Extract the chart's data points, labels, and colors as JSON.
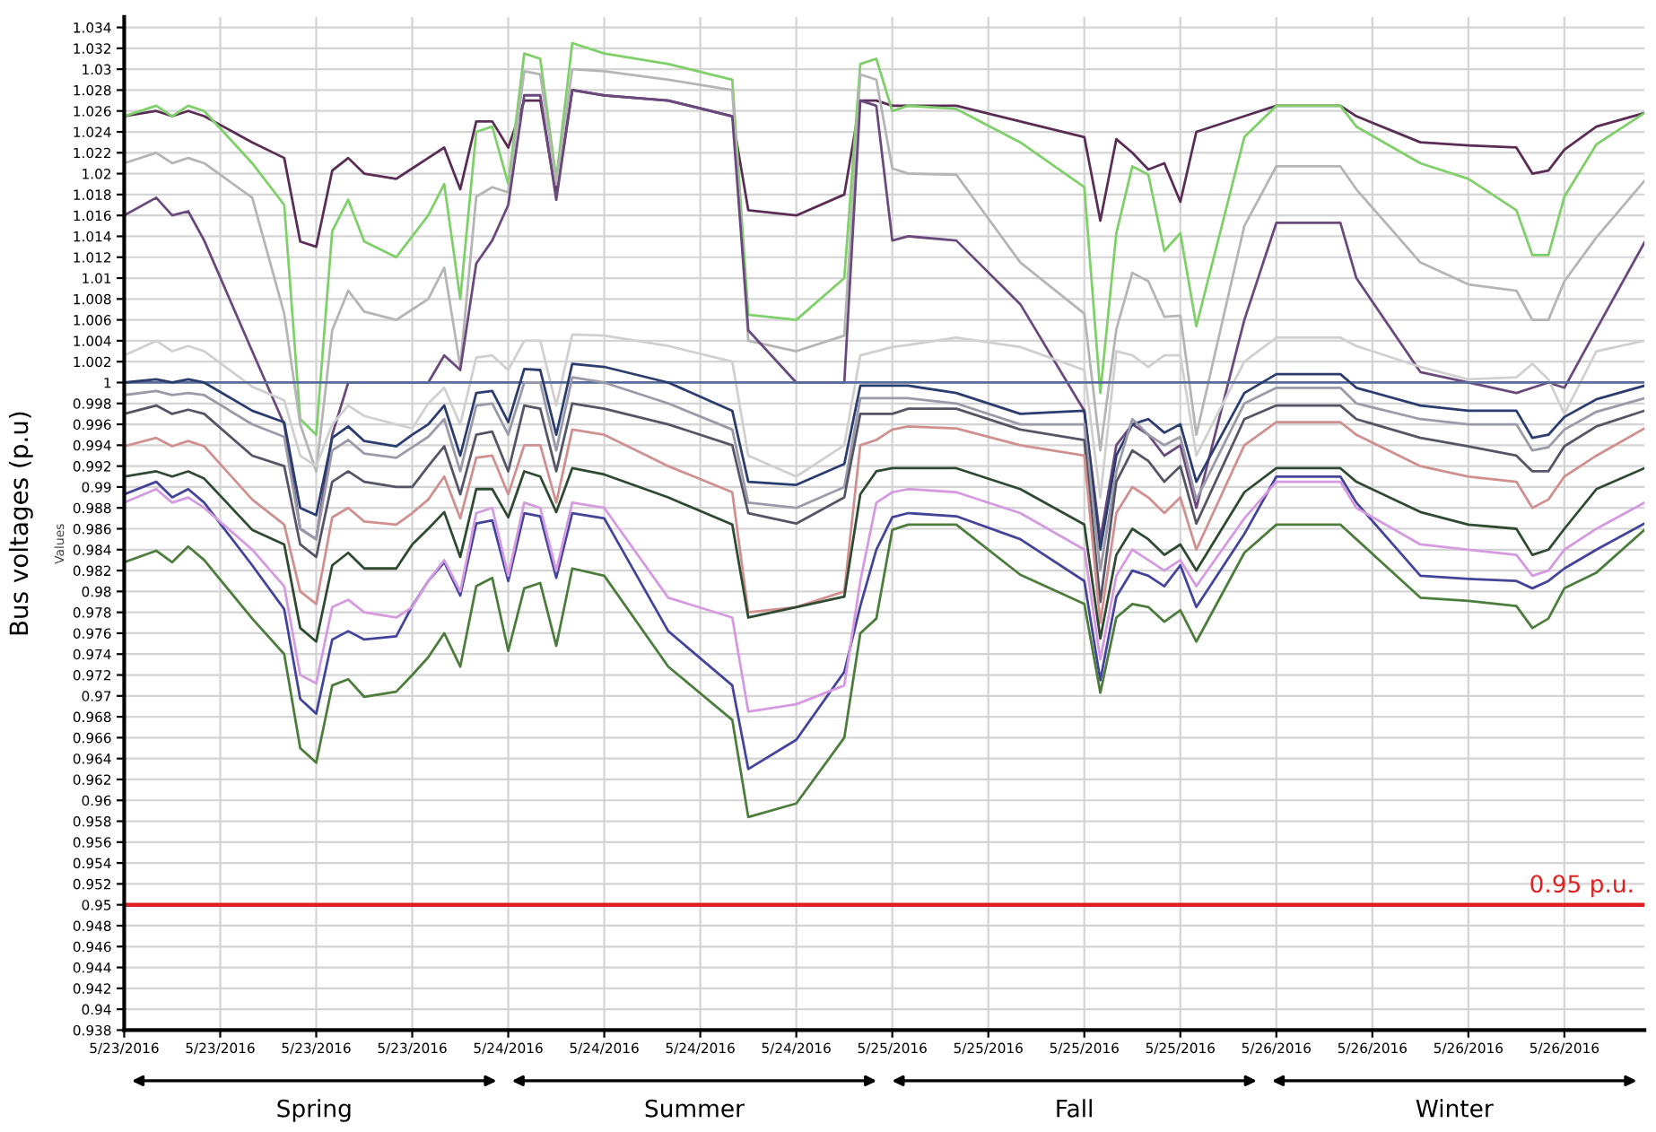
{
  "chart_data": {
    "type": "line",
    "ylabel": "Bus voltages (p.u)",
    "annotations": [
      "Values",
      "Spring",
      "Summer",
      "Fall",
      "Winter"
    ],
    "x": [
      "2016-05-23T00:00",
      "2016-05-23T02:00",
      "2016-05-23T03:00",
      "2016-05-23T04:00",
      "2016-05-23T05:00",
      "2016-05-23T08:00",
      "2016-05-23T10:00",
      "2016-05-23T11:00",
      "2016-05-23T12:00",
      "2016-05-23T13:00",
      "2016-05-23T14:00",
      "2016-05-23T15:00",
      "2016-05-23T17:00",
      "2016-05-23T18:00",
      "2016-05-23T19:00",
      "2016-05-23T20:00",
      "2016-05-23T21:00",
      "2016-05-23T22:00",
      "2016-05-23T23:00",
      "2016-05-24T00:00",
      "2016-05-24T01:00",
      "2016-05-24T02:00",
      "2016-05-24T03:00",
      "2016-05-24T04:00",
      "2016-05-24T06:00",
      "2016-05-24T10:00",
      "2016-05-24T14:00",
      "2016-05-24T15:00",
      "2016-05-24T18:00",
      "2016-05-24T21:00",
      "2016-05-24T22:00",
      "2016-05-24T23:00",
      "2016-05-25T00:00",
      "2016-05-25T01:00",
      "2016-05-25T04:00",
      "2016-05-25T08:00",
      "2016-05-25T12:00",
      "2016-05-25T13:00",
      "2016-05-25T14:00",
      "2016-05-25T15:00",
      "2016-05-25T16:00",
      "2016-05-25T17:00",
      "2016-05-25T18:00",
      "2016-05-25T19:00",
      "2016-05-25T22:00",
      "2016-05-26T00:00",
      "2016-05-26T04:00",
      "2016-05-26T05:00",
      "2016-05-26T09:00",
      "2016-05-26T12:00",
      "2016-05-26T15:00",
      "2016-05-26T16:00",
      "2016-05-26T17:00",
      "2016-05-26T18:00",
      "2016-05-26T20:00",
      "2016-05-26T23:00"
    ],
    "series": [
      {
        "color": "#5a2d55",
        "values": [
          1.0255,
          1.026,
          1.0255,
          1.026,
          1.0255,
          1.023,
          1.0215,
          1.0135,
          1.013,
          1.0203,
          1.0215,
          1.02,
          1.0195,
          1.0205,
          1.0215,
          1.0225,
          1.0185,
          1.025,
          1.025,
          1.0225,
          1.027,
          1.027,
          1.018,
          1.028,
          1.0275,
          1.027,
          1.0255,
          1.0165,
          1.016,
          1.018,
          1.027,
          1.027,
          1.0265,
          1.0265,
          1.0265,
          1.025,
          1.0235,
          1.0155,
          1.0233,
          1.022,
          1.0204,
          1.021,
          1.0173,
          1.024,
          1.0255,
          1.0265,
          1.0265,
          1.0255,
          1.023,
          1.0227,
          1.0225,
          1.02,
          1.0203,
          1.0223,
          1.0245,
          1.0258
        ]
      },
      {
        "color": "#7fd06a",
        "values": [
          1.0255,
          1.0265,
          1.0255,
          1.0265,
          1.026,
          1.021,
          1.017,
          0.9965,
          0.995,
          1.0145,
          1.0175,
          1.0135,
          1.012,
          1.014,
          1.016,
          1.019,
          1.008,
          1.024,
          1.0245,
          1.019,
          1.0315,
          1.031,
          1.0195,
          1.0325,
          1.0315,
          1.0305,
          1.029,
          1.0065,
          1.006,
          1.01,
          1.0305,
          1.031,
          1.026,
          1.0265,
          1.0262,
          1.023,
          1.0187,
          0.999,
          1.0143,
          1.0207,
          1.0199,
          1.0126,
          1.0143,
          1.0054,
          1.0235,
          1.0265,
          1.0265,
          1.0245,
          1.021,
          1.0195,
          1.0165,
          1.0122,
          1.0122,
          1.0178,
          1.0228,
          1.0258
        ]
      },
      {
        "color": "#b5b5b5",
        "values": [
          1.021,
          1.022,
          1.021,
          1.0215,
          1.021,
          1.0177,
          1.0066,
          0.996,
          0.9915,
          1.005,
          1.0088,
          1.0068,
          1.006,
          1.007,
          1.008,
          1.011,
          1.0015,
          1.0178,
          1.0187,
          1.0182,
          1.0298,
          1.0295,
          1.019,
          1.03,
          1.0298,
          1.029,
          1.028,
          1.004,
          1.003,
          1.0045,
          1.0295,
          1.029,
          1.0205,
          1.02,
          1.0199,
          1.0115,
          1.0066,
          0.9935,
          1.0051,
          1.0105,
          1.0097,
          1.0063,
          1.0064,
          0.995,
          1.015,
          1.0207,
          1.0207,
          1.0185,
          1.0115,
          1.0094,
          1.0088,
          1.006,
          1.006,
          1.0097,
          1.0139,
          1.0193
        ]
      },
      {
        "color": "#6a4a7d",
        "values": [
          1.016,
          1.0177,
          1.016,
          1.0164,
          1.0136,
          1.003,
          0.996,
          0.986,
          0.985,
          0.995,
          1.0,
          1.0,
          1.0,
          1.0,
          1.0,
          1.0026,
          1.0012,
          1.0114,
          1.0136,
          1.017,
          1.0275,
          1.0275,
          1.0175,
          1.028,
          1.0275,
          1.027,
          1.0255,
          1.005,
          1.0,
          1.0,
          1.027,
          1.0265,
          1.0136,
          1.014,
          1.0136,
          1.0075,
          0.9973,
          0.985,
          0.994,
          0.996,
          0.995,
          0.993,
          0.994,
          0.988,
          1.006,
          1.0153,
          1.0153,
          1.01,
          1.001,
          1.0,
          0.999,
          0.9995,
          1.0,
          0.9995,
          1.0051,
          1.0134
        ]
      },
      {
        "color": "#d0d0d0",
        "values": [
          1.0026,
          1.004,
          1.003,
          1.0035,
          1.003,
          0.9996,
          0.9983,
          0.993,
          0.992,
          0.996,
          0.9978,
          0.9968,
          0.996,
          0.9956,
          0.998,
          0.9995,
          0.996,
          1.0024,
          1.0026,
          1.0012,
          1.004,
          1.004,
          0.9978,
          1.0046,
          1.0045,
          1.0035,
          1.002,
          0.993,
          0.991,
          0.994,
          1.0026,
          1.003,
          1.0034,
          1.0036,
          1.0043,
          1.0034,
          1.0012,
          0.989,
          1.003,
          1.0026,
          1.0015,
          1.0026,
          1.0026,
          0.993,
          1.002,
          1.0043,
          1.0043,
          1.0035,
          1.0015,
          1.0003,
          1.0005,
          1.0018,
          1.0003,
          0.997,
          1.003,
          1.004
        ]
      },
      {
        "color": "#5a6a9a",
        "x": [
          "2016-05-23T00:00",
          "2016-05-26T23:00"
        ],
        "values": [
          1,
          1
        ]
      },
      {
        "color": "#2a3d6e",
        "values": [
          1.0,
          1.0003,
          1.0,
          1.0003,
          1.0,
          0.9973,
          0.9962,
          0.988,
          0.9873,
          0.9947,
          0.9958,
          0.9944,
          0.9939,
          0.995,
          0.996,
          0.9978,
          0.993,
          0.999,
          0.9992,
          0.9962,
          1.0013,
          1.0012,
          0.995,
          1.0018,
          1.0015,
          1.0,
          0.9973,
          0.9905,
          0.9902,
          0.9922,
          0.9997,
          0.9997,
          0.9997,
          0.9997,
          0.999,
          0.997,
          0.9973,
          0.984,
          0.993,
          0.996,
          0.9965,
          0.9952,
          0.996,
          0.9905,
          0.999,
          1.0008,
          1.0008,
          0.9995,
          0.9978,
          0.9973,
          0.9973,
          0.9947,
          0.995,
          0.9967,
          0.9984,
          0.9997
        ]
      },
      {
        "color": "#9a9aa8",
        "values": [
          0.9988,
          0.9992,
          0.9988,
          0.999,
          0.9988,
          0.996,
          0.9948,
          0.986,
          0.985,
          0.9935,
          0.9945,
          0.9932,
          0.9928,
          0.9938,
          0.9948,
          0.9965,
          0.9915,
          0.9978,
          0.998,
          0.995,
          1.0,
          1.0,
          0.9935,
          1.0005,
          1.0,
          0.998,
          0.9955,
          0.9885,
          0.988,
          0.99,
          0.9985,
          0.9985,
          0.9985,
          0.9985,
          0.998,
          0.996,
          0.996,
          0.982,
          0.9915,
          0.9965,
          0.995,
          0.994,
          0.9948,
          0.9888,
          0.998,
          0.9995,
          0.9995,
          0.998,
          0.9965,
          0.996,
          0.996,
          0.9935,
          0.9938,
          0.9955,
          0.9972,
          0.9985
        ]
      },
      {
        "color": "#555566",
        "values": [
          0.997,
          0.9978,
          0.997,
          0.9974,
          0.997,
          0.993,
          0.992,
          0.9845,
          0.9833,
          0.9905,
          0.9915,
          0.9905,
          0.99,
          0.99,
          0.992,
          0.9939,
          0.9893,
          0.995,
          0.9953,
          0.9915,
          0.9978,
          0.9975,
          0.9915,
          0.998,
          0.9975,
          0.996,
          0.994,
          0.9875,
          0.9865,
          0.989,
          0.997,
          0.997,
          0.997,
          0.9975,
          0.9975,
          0.9955,
          0.9945,
          0.979,
          0.9905,
          0.9935,
          0.9925,
          0.9905,
          0.992,
          0.9865,
          0.9965,
          0.9978,
          0.9978,
          0.9965,
          0.9947,
          0.9939,
          0.993,
          0.9915,
          0.9915,
          0.9939,
          0.9958,
          0.9973
        ]
      },
      {
        "color": "#d09090",
        "values": [
          0.9939,
          0.9947,
          0.9939,
          0.9944,
          0.9939,
          0.9888,
          0.9864,
          0.98,
          0.9788,
          0.9871,
          0.988,
          0.9867,
          0.9864,
          0.9875,
          0.9888,
          0.991,
          0.987,
          0.9928,
          0.993,
          0.9893,
          0.994,
          0.994,
          0.9885,
          0.9955,
          0.995,
          0.992,
          0.9895,
          0.978,
          0.9785,
          0.98,
          0.994,
          0.9945,
          0.9955,
          0.9958,
          0.9956,
          0.994,
          0.993,
          0.977,
          0.9875,
          0.99,
          0.989,
          0.9875,
          0.989,
          0.984,
          0.994,
          0.9962,
          0.9962,
          0.995,
          0.992,
          0.991,
          0.9905,
          0.988,
          0.9888,
          0.991,
          0.993,
          0.9956
        ]
      },
      {
        "color": "#2e4a30",
        "values": [
          0.991,
          0.9915,
          0.991,
          0.9915,
          0.9908,
          0.9859,
          0.9845,
          0.9765,
          0.9752,
          0.9825,
          0.9837,
          0.9822,
          0.9822,
          0.9845,
          0.986,
          0.9876,
          0.9833,
          0.9898,
          0.9898,
          0.9871,
          0.9915,
          0.991,
          0.9876,
          0.9918,
          0.9912,
          0.989,
          0.9864,
          0.9775,
          0.9785,
          0.9795,
          0.9893,
          0.9915,
          0.9918,
          0.9918,
          0.9918,
          0.9898,
          0.9864,
          0.9755,
          0.9835,
          0.986,
          0.985,
          0.9835,
          0.9845,
          0.982,
          0.9895,
          0.9918,
          0.9918,
          0.9905,
          0.9876,
          0.9864,
          0.986,
          0.9835,
          0.984,
          0.986,
          0.9898,
          0.9918
        ]
      },
      {
        "color": "#44449a",
        "values": [
          0.9893,
          0.9905,
          0.989,
          0.9898,
          0.9885,
          0.9825,
          0.9783,
          0.9697,
          0.9683,
          0.9754,
          0.9762,
          0.9754,
          0.9757,
          0.9786,
          0.981,
          0.9828,
          0.9796,
          0.9865,
          0.9868,
          0.981,
          0.9875,
          0.9872,
          0.9813,
          0.9875,
          0.987,
          0.9762,
          0.971,
          0.963,
          0.9658,
          0.9723,
          0.9786,
          0.984,
          0.9871,
          0.9875,
          0.9872,
          0.985,
          0.981,
          0.9715,
          0.9795,
          0.982,
          0.9815,
          0.9805,
          0.9825,
          0.9785,
          0.9855,
          0.991,
          0.991,
          0.9885,
          0.9815,
          0.9812,
          0.981,
          0.9803,
          0.981,
          0.9822,
          0.984,
          0.9865
        ]
      },
      {
        "color": "#d59ae0",
        "values": [
          0.9885,
          0.9898,
          0.9885,
          0.989,
          0.988,
          0.984,
          0.9805,
          0.972,
          0.9712,
          0.9785,
          0.9792,
          0.978,
          0.9775,
          0.9785,
          0.981,
          0.983,
          0.98,
          0.9875,
          0.988,
          0.9815,
          0.9885,
          0.988,
          0.982,
          0.9885,
          0.988,
          0.9794,
          0.9775,
          0.9685,
          0.9692,
          0.971,
          0.981,
          0.9885,
          0.9895,
          0.9898,
          0.9895,
          0.9875,
          0.984,
          0.9735,
          0.9815,
          0.984,
          0.983,
          0.982,
          0.983,
          0.9805,
          0.987,
          0.9905,
          0.9905,
          0.988,
          0.9845,
          0.984,
          0.9835,
          0.9815,
          0.982,
          0.984,
          0.986,
          0.9885
        ]
      },
      {
        "color": "#4c7d3c",
        "values": [
          0.9828,
          0.9839,
          0.9828,
          0.9843,
          0.983,
          0.9774,
          0.974,
          0.965,
          0.9636,
          0.971,
          0.9716,
          0.9699,
          0.9704,
          0.972,
          0.9737,
          0.976,
          0.9728,
          0.9805,
          0.9813,
          0.9743,
          0.9803,
          0.9808,
          0.9748,
          0.9822,
          0.9815,
          0.9728,
          0.9677,
          0.9584,
          0.9597,
          0.966,
          0.976,
          0.9774,
          0.9859,
          0.9864,
          0.9864,
          0.9816,
          0.9788,
          0.9703,
          0.9775,
          0.9788,
          0.9785,
          0.9771,
          0.9782,
          0.9752,
          0.9837,
          0.9864,
          0.9864,
          0.985,
          0.9794,
          0.9791,
          0.9786,
          0.9765,
          0.9774,
          0.9803,
          0.9818,
          0.9859
        ]
      }
    ],
    "xlim": [
      "2016-05-23T00:00",
      "2016-05-26T23:00"
    ],
    "xticks": [
      {
        "value": "2016-05-23T00:00",
        "label": "5/23/2016"
      },
      {
        "value": "2016-05-23T06:00",
        "label": "5/23/2016"
      },
      {
        "value": "2016-05-23T12:00",
        "label": "5/23/2016"
      },
      {
        "value": "2016-05-23T18:00",
        "label": "5/23/2016"
      },
      {
        "value": "2016-05-24T00:00",
        "label": "5/24/2016"
      },
      {
        "value": "2016-05-24T06:00",
        "label": "5/24/2016"
      },
      {
        "value": "2016-05-24T12:00",
        "label": "5/24/2016"
      },
      {
        "value": "2016-05-24T18:00",
        "label": "5/24/2016"
      },
      {
        "value": "2016-05-25T00:00",
        "label": "5/25/2016"
      },
      {
        "value": "2016-05-25T06:00",
        "label": "5/25/2016"
      },
      {
        "value": "2016-05-25T12:00",
        "label": "5/25/2016"
      },
      {
        "value": "2016-05-25T18:00",
        "label": "5/25/2016"
      },
      {
        "value": "2016-05-26T00:00",
        "label": "5/26/2016"
      },
      {
        "value": "2016-05-26T06:00",
        "label": "5/26/2016"
      },
      {
        "value": "2016-05-26T12:00",
        "label": "5/26/2016"
      },
      {
        "value": "2016-05-26T18:00",
        "label": "5/26/2016"
      }
    ],
    "ylim": [
      0.938,
      1.035
    ],
    "yticks": [
      0.938,
      0.94,
      0.942,
      0.944,
      0.946,
      0.948,
      0.95,
      0.952,
      0.954,
      0.956,
      0.958,
      0.96,
      0.962,
      0.964,
      0.966,
      0.968,
      0.97,
      0.972,
      0.974,
      0.976,
      0.978,
      0.98,
      0.982,
      0.984,
      0.986,
      0.988,
      0.99,
      0.992,
      0.994,
      0.996,
      0.998,
      1,
      1.002,
      1.004,
      1.006,
      1.008,
      1.01,
      1.012,
      1.014,
      1.016,
      1.018,
      1.02,
      1.022,
      1.024,
      1.026,
      1.028,
      1.03,
      1.032,
      1.034
    ],
    "ref_lines": [
      {
        "axis": "y",
        "value": 0.95,
        "label": "0.95 p.u.",
        "color": "#e02020"
      }
    ],
    "grid": true,
    "legend": false,
    "marker": "none",
    "line_style": "solid"
  }
}
